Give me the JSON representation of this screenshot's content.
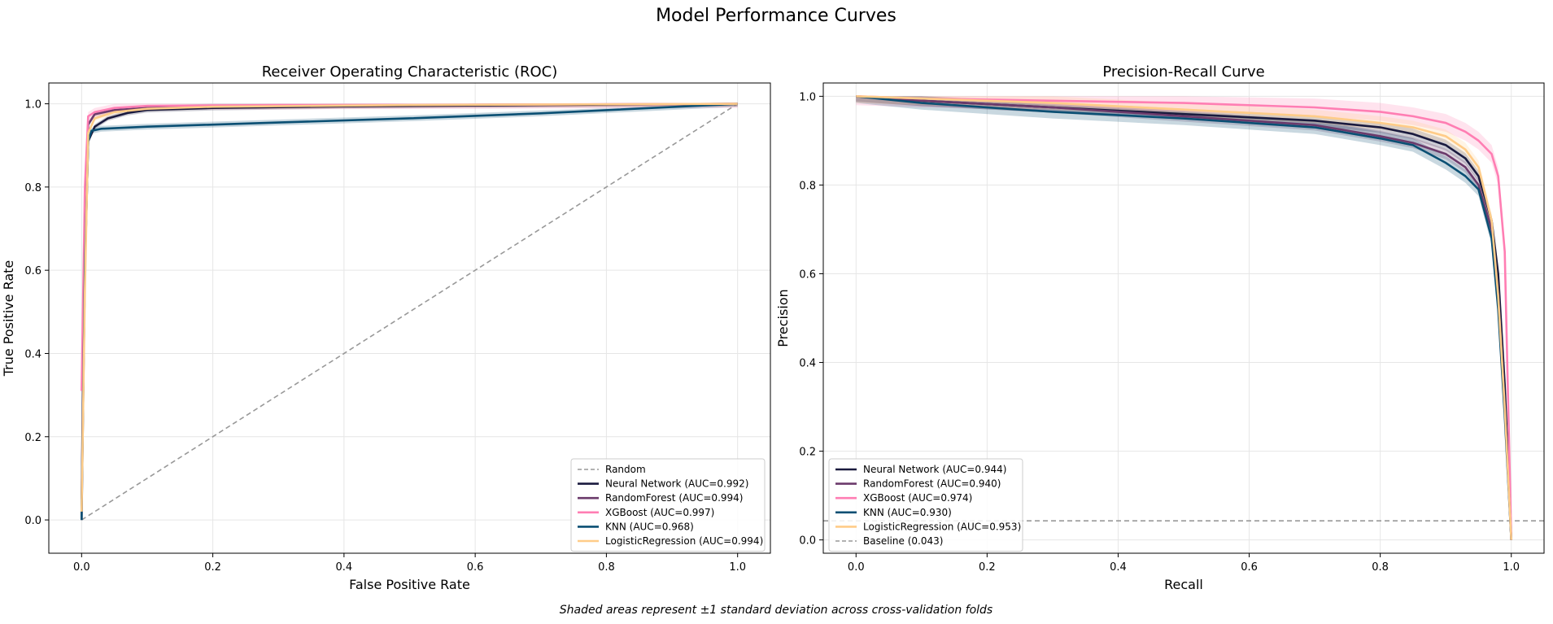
{
  "figure": {
    "title": "Model Performance Curves",
    "footnote": "Shaded areas represent ±1 standard deviation across cross-validation folds"
  },
  "chart_data": [
    {
      "type": "line",
      "title": "Receiver Operating Characteristic (ROC)",
      "xlabel": "False Positive Rate",
      "ylabel": "True Positive Rate",
      "xlim": [
        -0.05,
        1.05
      ],
      "ylim": [
        -0.08,
        1.05
      ],
      "xticks": [
        "0.0",
        "0.2",
        "0.4",
        "0.6",
        "0.8",
        "1.0"
      ],
      "yticks": [
        "0.0",
        "0.2",
        "0.4",
        "0.6",
        "0.8",
        "1.0"
      ],
      "grid": true,
      "legend_position": "lower right",
      "reference_line": {
        "name": "Random",
        "color": "#999999",
        "x": [
          0,
          1
        ],
        "y": [
          0,
          1
        ]
      },
      "series": [
        {
          "name": "Neural Network (AUC=0.992)",
          "color": "#1a1a3e",
          "band": 0.006,
          "x": [
            0,
            0.005,
            0.01,
            0.02,
            0.04,
            0.07,
            0.1,
            0.2,
            0.4,
            0.7,
            1.0
          ],
          "y": [
            0.0,
            0.6,
            0.91,
            0.945,
            0.965,
            0.978,
            0.985,
            0.99,
            0.994,
            0.997,
            1.0
          ]
        },
        {
          "name": "RandomForest (AUC=0.994)",
          "color": "#6b3a6b",
          "band": 0.006,
          "x": [
            0,
            0.005,
            0.01,
            0.02,
            0.05,
            0.1,
            0.2,
            0.5,
            1.0
          ],
          "y": [
            0.05,
            0.7,
            0.95,
            0.975,
            0.985,
            0.99,
            0.994,
            0.997,
            1.0
          ]
        },
        {
          "name": "XGBoost (AUC=0.997)",
          "color": "#ff7eb3",
          "band": 0.01,
          "x": [
            0,
            0.005,
            0.01,
            0.02,
            0.05,
            0.1,
            0.3,
            0.6,
            1.0
          ],
          "y": [
            0.31,
            0.8,
            0.97,
            0.98,
            0.99,
            0.995,
            0.997,
            0.998,
            1.0
          ]
        },
        {
          "name": "KNN (AUC=0.968)",
          "color": "#0a4f73",
          "band": 0.007,
          "x": [
            0,
            0,
            0.005,
            0.01,
            0.015,
            0.03,
            0.1,
            0.3,
            0.5,
            0.7,
            1.0
          ],
          "y": [
            0.0,
            0.035,
            0.6,
            0.91,
            0.935,
            0.94,
            0.945,
            0.955,
            0.965,
            0.977,
            1.0
          ]
        },
        {
          "name": "LogisticRegression (AUC=0.994)",
          "color": "#ffcc88",
          "band": 0.006,
          "x": [
            0,
            0.005,
            0.01,
            0.02,
            0.05,
            0.1,
            0.2,
            0.5,
            1.0
          ],
          "y": [
            0.02,
            0.55,
            0.93,
            0.965,
            0.98,
            0.988,
            0.993,
            0.997,
            1.0
          ]
        }
      ]
    },
    {
      "type": "line",
      "title": "Precision-Recall Curve",
      "xlabel": "Recall",
      "ylabel": "Precision",
      "xlim": [
        -0.05,
        1.05
      ],
      "ylim": [
        -0.03,
        1.03
      ],
      "xticks": [
        "0.0",
        "0.2",
        "0.4",
        "0.6",
        "0.8",
        "1.0"
      ],
      "yticks": [
        "0.0",
        "0.2",
        "0.4",
        "0.6",
        "0.8",
        "1.0"
      ],
      "grid": true,
      "legend_position": "lower left",
      "reference_line": {
        "name": "Baseline (0.043)",
        "color": "#999999",
        "y_const": 0.043
      },
      "series": [
        {
          "name": "Neural Network (AUC=0.944)",
          "color": "#1a1a3e",
          "band": 0.012,
          "x": [
            0,
            0.1,
            0.3,
            0.5,
            0.7,
            0.8,
            0.85,
            0.9,
            0.93,
            0.95,
            0.97,
            0.98,
            0.99,
            1.0
          ],
          "y": [
            1.0,
            0.99,
            0.975,
            0.96,
            0.945,
            0.93,
            0.915,
            0.89,
            0.86,
            0.82,
            0.72,
            0.6,
            0.35,
            0.0
          ]
        },
        {
          "name": "RandomForest (AUC=0.940)",
          "color": "#6b3a6b",
          "band": 0.012,
          "x": [
            0,
            0.1,
            0.3,
            0.5,
            0.7,
            0.8,
            0.85,
            0.9,
            0.93,
            0.95,
            0.97,
            0.98,
            0.99,
            1.0
          ],
          "y": [
            1.0,
            0.99,
            0.975,
            0.955,
            0.935,
            0.91,
            0.895,
            0.87,
            0.84,
            0.8,
            0.7,
            0.55,
            0.3,
            0.0
          ]
        },
        {
          "name": "XGBoost (AUC=0.974)",
          "color": "#ff7eb3",
          "band": 0.02,
          "x": [
            0,
            0.1,
            0.3,
            0.5,
            0.7,
            0.8,
            0.85,
            0.9,
            0.93,
            0.95,
            0.97,
            0.98,
            0.99,
            1.0
          ],
          "y": [
            1.0,
            0.995,
            0.99,
            0.985,
            0.975,
            0.965,
            0.955,
            0.94,
            0.92,
            0.9,
            0.87,
            0.82,
            0.65,
            0.0
          ]
        },
        {
          "name": "KNN (AUC=0.930)",
          "color": "#0a4f73",
          "band": 0.015,
          "x": [
            0,
            0.1,
            0.3,
            0.5,
            0.7,
            0.8,
            0.85,
            0.9,
            0.93,
            0.95,
            0.97,
            0.98,
            0.99,
            1.0
          ],
          "y": [
            1.0,
            0.985,
            0.965,
            0.95,
            0.93,
            0.905,
            0.89,
            0.85,
            0.82,
            0.79,
            0.68,
            0.52,
            0.28,
            0.0
          ]
        },
        {
          "name": "LogisticRegression (AUC=0.953)",
          "color": "#ffcc88",
          "band": 0.015,
          "x": [
            0,
            0.1,
            0.3,
            0.5,
            0.7,
            0.8,
            0.85,
            0.9,
            0.93,
            0.95,
            0.97,
            0.98,
            0.99,
            1.0
          ],
          "y": [
            1.0,
            0.995,
            0.985,
            0.97,
            0.955,
            0.94,
            0.93,
            0.91,
            0.88,
            0.84,
            0.72,
            0.55,
            0.3,
            0.0
          ]
        }
      ]
    }
  ]
}
